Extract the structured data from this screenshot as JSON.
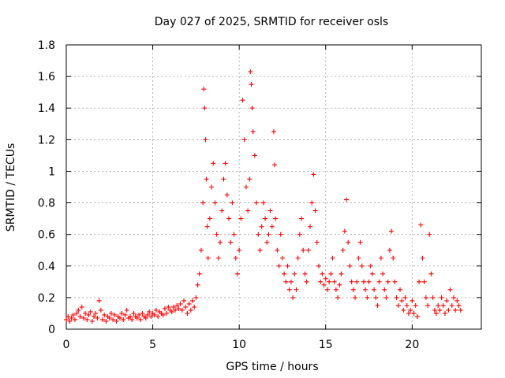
{
  "chart_data": {
    "type": "scatter",
    "title": "Day 027 of 2025, SRMTID for receiver osls",
    "xlabel": "GPS time / hours",
    "ylabel": "SRMTID / TECUs",
    "xlim": [
      0,
      24
    ],
    "ylim": [
      0,
      1.8
    ],
    "xticks": [
      0,
      5,
      10,
      15,
      20
    ],
    "xtick_labels": [
      "0",
      "5",
      "10",
      "15",
      "20"
    ],
    "yticks": [
      0,
      0.2,
      0.4,
      0.6,
      0.8,
      1.0,
      1.2,
      1.4,
      1.6,
      1.8
    ],
    "ytick_labels": [
      "0",
      "0.2",
      "0.4",
      "0.6",
      "0.8",
      "1",
      "1.2",
      "1.4",
      "1.6",
      "1.8"
    ],
    "grid": true,
    "marker": "+",
    "color": "#ff0000",
    "series": [
      {
        "name": "SRMTID",
        "points": [
          [
            0.0,
            0.06
          ],
          [
            0.1,
            0.08
          ],
          [
            0.2,
            0.05
          ],
          [
            0.3,
            0.07
          ],
          [
            0.4,
            0.09
          ],
          [
            0.5,
            0.06
          ],
          [
            0.6,
            0.1
          ],
          [
            0.7,
            0.12
          ],
          [
            0.8,
            0.08
          ],
          [
            0.9,
            0.14
          ],
          [
            1.0,
            0.07
          ],
          [
            1.1,
            0.1
          ],
          [
            1.2,
            0.06
          ],
          [
            1.3,
            0.09
          ],
          [
            1.4,
            0.11
          ],
          [
            1.5,
            0.05
          ],
          [
            1.6,
            0.08
          ],
          [
            1.7,
            0.1
          ],
          [
            1.8,
            0.07
          ],
          [
            1.9,
            0.18
          ],
          [
            2.0,
            0.12
          ],
          [
            2.1,
            0.06
          ],
          [
            2.2,
            0.09
          ],
          [
            2.3,
            0.05
          ],
          [
            2.4,
            0.08
          ],
          [
            2.5,
            0.07
          ],
          [
            2.6,
            0.1
          ],
          [
            2.7,
            0.06
          ],
          [
            2.8,
            0.09
          ],
          [
            2.9,
            0.05
          ],
          [
            3.0,
            0.08
          ],
          [
            3.1,
            0.07
          ],
          [
            3.2,
            0.1
          ],
          [
            3.3,
            0.06
          ],
          [
            3.4,
            0.09
          ],
          [
            3.5,
            0.12
          ],
          [
            3.6,
            0.07
          ],
          [
            3.7,
            0.08
          ],
          [
            3.8,
            0.06
          ],
          [
            3.9,
            0.1
          ],
          [
            4.0,
            0.08
          ],
          [
            4.1,
            0.07
          ],
          [
            4.2,
            0.09
          ],
          [
            4.3,
            0.06
          ],
          [
            4.4,
            0.1
          ],
          [
            4.5,
            0.08
          ],
          [
            4.6,
            0.07
          ],
          [
            4.7,
            0.09
          ],
          [
            4.8,
            0.11
          ],
          [
            4.9,
            0.08
          ],
          [
            5.0,
            0.1
          ],
          [
            5.1,
            0.09
          ],
          [
            5.2,
            0.12
          ],
          [
            5.3,
            0.08
          ],
          [
            5.4,
            0.11
          ],
          [
            5.5,
            0.1
          ],
          [
            5.6,
            0.09
          ],
          [
            5.7,
            0.13
          ],
          [
            5.8,
            0.1
          ],
          [
            5.9,
            0.14
          ],
          [
            6.0,
            0.12
          ],
          [
            6.1,
            0.11
          ],
          [
            6.2,
            0.14
          ],
          [
            6.3,
            0.12
          ],
          [
            6.4,
            0.15
          ],
          [
            6.5,
            0.13
          ],
          [
            6.6,
            0.16
          ],
          [
            6.7,
            0.12
          ],
          [
            6.8,
            0.18
          ],
          [
            6.9,
            0.14
          ],
          [
            7.0,
            0.1
          ],
          [
            7.1,
            0.16
          ],
          [
            7.2,
            0.12
          ],
          [
            7.3,
            0.18
          ],
          [
            7.4,
            0.14
          ],
          [
            7.5,
            0.2
          ],
          [
            7.6,
            0.28
          ],
          [
            7.7,
            0.35
          ],
          [
            7.8,
            0.5
          ],
          [
            7.9,
            0.8
          ],
          [
            7.95,
            1.52
          ],
          [
            8.0,
            1.4
          ],
          [
            8.05,
            1.2
          ],
          [
            8.1,
            0.95
          ],
          [
            8.15,
            0.65
          ],
          [
            8.2,
            0.45
          ],
          [
            8.3,
            0.7
          ],
          [
            8.4,
            0.9
          ],
          [
            8.5,
            1.05
          ],
          [
            8.6,
            0.8
          ],
          [
            8.7,
            0.6
          ],
          [
            8.8,
            0.45
          ],
          [
            8.9,
            0.55
          ],
          [
            9.0,
            0.75
          ],
          [
            9.1,
            0.95
          ],
          [
            9.2,
            1.05
          ],
          [
            9.3,
            0.85
          ],
          [
            9.4,
            0.7
          ],
          [
            9.5,
            0.55
          ],
          [
            9.6,
            0.8
          ],
          [
            9.7,
            0.6
          ],
          [
            9.8,
            0.45
          ],
          [
            9.9,
            0.35
          ],
          [
            10.0,
            0.5
          ],
          [
            10.1,
            0.7
          ],
          [
            10.2,
            1.45
          ],
          [
            10.3,
            1.2
          ],
          [
            10.4,
            0.9
          ],
          [
            10.5,
            0.75
          ],
          [
            10.6,
            0.95
          ],
          [
            10.65,
            1.63
          ],
          [
            10.7,
            1.55
          ],
          [
            10.75,
            1.4
          ],
          [
            10.8,
            1.25
          ],
          [
            10.9,
            1.1
          ],
          [
            11.0,
            0.8
          ],
          [
            11.1,
            0.6
          ],
          [
            11.2,
            0.5
          ],
          [
            11.3,
            0.65
          ],
          [
            11.4,
            0.8
          ],
          [
            11.5,
            0.7
          ],
          [
            11.6,
            0.55
          ],
          [
            11.7,
            0.6
          ],
          [
            11.8,
            0.75
          ],
          [
            11.9,
            0.65
          ],
          [
            12.0,
            1.25
          ],
          [
            12.05,
            1.04
          ],
          [
            12.1,
            0.7
          ],
          [
            12.2,
            0.5
          ],
          [
            12.3,
            0.4
          ],
          [
            12.4,
            0.6
          ],
          [
            12.5,
            0.45
          ],
          [
            12.6,
            0.35
          ],
          [
            12.7,
            0.3
          ],
          [
            12.8,
            0.4
          ],
          [
            12.9,
            0.25
          ],
          [
            13.0,
            0.3
          ],
          [
            13.1,
            0.2
          ],
          [
            13.2,
            0.35
          ],
          [
            13.3,
            0.25
          ],
          [
            13.4,
            0.45
          ],
          [
            13.5,
            0.6
          ],
          [
            13.6,
            0.7
          ],
          [
            13.7,
            0.5
          ],
          [
            13.8,
            0.35
          ],
          [
            13.9,
            0.3
          ],
          [
            14.0,
            0.5
          ],
          [
            14.1,
            0.65
          ],
          [
            14.2,
            0.8
          ],
          [
            14.3,
            0.98
          ],
          [
            14.4,
            0.75
          ],
          [
            14.5,
            0.55
          ],
          [
            14.6,
            0.4
          ],
          [
            14.7,
            0.3
          ],
          [
            14.8,
            0.35
          ],
          [
            14.9,
            0.28
          ],
          [
            15.0,
            0.32
          ],
          [
            15.1,
            0.25
          ],
          [
            15.2,
            0.3
          ],
          [
            15.3,
            0.35
          ],
          [
            15.4,
            0.45
          ],
          [
            15.5,
            0.3
          ],
          [
            15.6,
            0.25
          ],
          [
            15.7,
            0.2
          ],
          [
            15.8,
            0.28
          ],
          [
            15.9,
            0.35
          ],
          [
            16.0,
            0.5
          ],
          [
            16.1,
            0.62
          ],
          [
            16.2,
            0.82
          ],
          [
            16.3,
            0.55
          ],
          [
            16.4,
            0.4
          ],
          [
            16.5,
            0.3
          ],
          [
            16.6,
            0.25
          ],
          [
            16.7,
            0.2
          ],
          [
            16.8,
            0.3
          ],
          [
            16.9,
            0.45
          ],
          [
            17.0,
            0.55
          ],
          [
            17.1,
            0.4
          ],
          [
            17.2,
            0.3
          ],
          [
            17.3,
            0.25
          ],
          [
            17.4,
            0.2
          ],
          [
            17.5,
            0.3
          ],
          [
            17.6,
            0.4
          ],
          [
            17.7,
            0.35
          ],
          [
            17.8,
            0.25
          ],
          [
            17.9,
            0.2
          ],
          [
            18.0,
            0.15
          ],
          [
            18.1,
            0.3
          ],
          [
            18.2,
            0.45
          ],
          [
            18.3,
            0.35
          ],
          [
            18.4,
            0.25
          ],
          [
            18.5,
            0.2
          ],
          [
            18.6,
            0.3
          ],
          [
            18.7,
            0.5
          ],
          [
            18.8,
            0.62
          ],
          [
            18.9,
            0.45
          ],
          [
            19.0,
            0.3
          ],
          [
            19.1,
            0.2
          ],
          [
            19.2,
            0.15
          ],
          [
            19.3,
            0.25
          ],
          [
            19.4,
            0.18
          ],
          [
            19.5,
            0.12
          ],
          [
            19.6,
            0.2
          ],
          [
            19.7,
            0.15
          ],
          [
            19.8,
            0.1
          ],
          [
            19.9,
            0.12
          ],
          [
            20.0,
            0.18
          ],
          [
            20.1,
            0.1
          ],
          [
            20.2,
            0.15
          ],
          [
            20.3,
            0.08
          ],
          [
            20.4,
            0.3
          ],
          [
            20.5,
            0.66
          ],
          [
            20.6,
            0.45
          ],
          [
            20.7,
            0.3
          ],
          [
            20.8,
            0.2
          ],
          [
            20.9,
            0.15
          ],
          [
            21.0,
            0.6
          ],
          [
            21.1,
            0.35
          ],
          [
            21.2,
            0.2
          ],
          [
            21.3,
            0.12
          ],
          [
            21.4,
            0.1
          ],
          [
            21.5,
            0.15
          ],
          [
            21.6,
            0.12
          ],
          [
            21.7,
            0.2
          ],
          [
            21.8,
            0.15
          ],
          [
            21.9,
            0.1
          ],
          [
            22.0,
            0.18
          ],
          [
            22.1,
            0.12
          ],
          [
            22.2,
            0.25
          ],
          [
            22.3,
            0.15
          ],
          [
            22.4,
            0.2
          ],
          [
            22.5,
            0.12
          ],
          [
            22.6,
            0.18
          ],
          [
            22.7,
            0.15
          ],
          [
            22.8,
            0.12
          ]
        ]
      }
    ]
  }
}
